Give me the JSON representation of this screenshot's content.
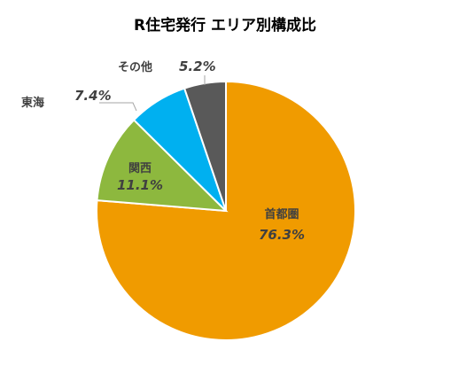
{
  "chart_data": {
    "type": "pie",
    "title": "R住宅発行 エリア別構成比",
    "slices": [
      {
        "label": "首都圏",
        "value": 76.3,
        "value_label": "76.3%",
        "color": "#F09B00"
      },
      {
        "label": "関西",
        "value": 11.1,
        "value_label": "11.1%",
        "color": "#8DB83E"
      },
      {
        "label": "東海",
        "value": 7.4,
        "value_label": "7.4%",
        "color": "#00B0F0"
      },
      {
        "label": "その他",
        "value": 5.2,
        "value_label": "5.2%",
        "color": "#595959"
      }
    ],
    "start": "12 o'clock",
    "direction": "clockwise",
    "legend": "none"
  }
}
